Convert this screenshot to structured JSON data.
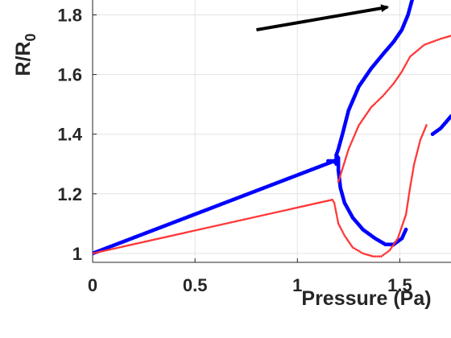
{
  "chart_data": {
    "type": "scatter",
    "xlabel": "Pressure (Pa)",
    "ylabel": {
      "main": "R/R",
      "subscript": "0"
    },
    "xlim": [
      0,
      1.75
    ],
    "ylim": [
      0.97,
      1.85
    ],
    "xticks": [
      {
        "value": 0,
        "label": "0"
      },
      {
        "value": 0.5,
        "label": "0.5"
      },
      {
        "value": 1,
        "label": "1"
      },
      {
        "value": 1.5,
        "label": "1.5"
      }
    ],
    "yticks": [
      {
        "value": 1.0,
        "label": "1"
      },
      {
        "value": 1.2,
        "label": "1.2"
      },
      {
        "value": 1.4,
        "label": "1.4"
      },
      {
        "value": 1.6,
        "label": "1.6"
      },
      {
        "value": 1.8,
        "label": "1.8"
      }
    ],
    "grid": true,
    "series": [
      {
        "color": "#0000ff",
        "marker_size": 2.4,
        "segments": [
          [
            [
              0,
              1.0
            ],
            [
              1.18,
              1.31
            ]
          ],
          [
            [
              1.15,
              1.31
            ],
            [
              1.18,
              1.31
            ],
            [
              1.19,
              1.3
            ],
            [
              1.19,
              1.33
            ],
            [
              1.2,
              1.32
            ],
            [
              1.2,
              1.28
            ],
            [
              1.21,
              1.22
            ],
            [
              1.23,
              1.17
            ],
            [
              1.27,
              1.12
            ],
            [
              1.32,
              1.08
            ],
            [
              1.38,
              1.05
            ],
            [
              1.43,
              1.03
            ],
            [
              1.47,
              1.03
            ],
            [
              1.51,
              1.05
            ],
            [
              1.53,
              1.08
            ]
          ],
          [
            [
              1.19,
              1.33
            ],
            [
              1.2,
              1.35
            ],
            [
              1.22,
              1.4
            ],
            [
              1.25,
              1.48
            ],
            [
              1.3,
              1.56
            ],
            [
              1.36,
              1.62
            ],
            [
              1.42,
              1.67
            ],
            [
              1.47,
              1.71
            ],
            [
              1.51,
              1.75
            ],
            [
              1.54,
              1.8
            ],
            [
              1.56,
              1.85
            ]
          ],
          [
            [
              1.66,
              1.4
            ],
            [
              1.7,
              1.42
            ],
            [
              1.75,
              1.46
            ]
          ]
        ]
      },
      {
        "color": "#ff3333",
        "marker_size": 1.3,
        "segments": [
          [
            [
              0,
              1.0
            ],
            [
              1.17,
              1.18
            ]
          ],
          [
            [
              1.17,
              1.18
            ],
            [
              1.18,
              1.17
            ],
            [
              1.2,
              1.1
            ],
            [
              1.23,
              1.06
            ],
            [
              1.27,
              1.02
            ],
            [
              1.32,
              1.0
            ],
            [
              1.37,
              0.99
            ],
            [
              1.41,
              0.99
            ],
            [
              1.45,
              1.01
            ],
            [
              1.49,
              1.05
            ],
            [
              1.53,
              1.13
            ],
            [
              1.55,
              1.22
            ],
            [
              1.57,
              1.3
            ],
            [
              1.6,
              1.38
            ],
            [
              1.63,
              1.43
            ]
          ],
          [
            [
              1.2,
              1.24
            ],
            [
              1.25,
              1.35
            ],
            [
              1.3,
              1.43
            ],
            [
              1.36,
              1.49
            ],
            [
              1.42,
              1.53
            ],
            [
              1.47,
              1.57
            ],
            [
              1.51,
              1.61
            ],
            [
              1.55,
              1.66
            ],
            [
              1.62,
              1.7
            ],
            [
              1.7,
              1.72
            ],
            [
              1.75,
              1.73
            ]
          ]
        ]
      }
    ],
    "annotations": [
      {
        "type": "arrow",
        "color": "#000000",
        "from": [
          0.8,
          1.75
        ],
        "to": [
          1.44,
          1.826
        ]
      }
    ]
  }
}
